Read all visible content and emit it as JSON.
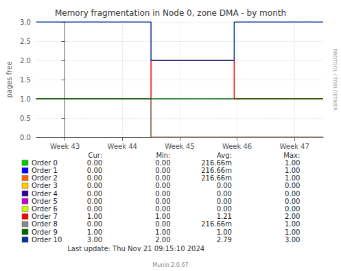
{
  "chart_data": {
    "type": "line",
    "title": "Memory fragmentation in Node 0, zone DMA - by month",
    "ylabel": "pages free",
    "xlim": [
      -0.5,
      4.5
    ],
    "xticks": [
      {
        "value": 0,
        "label": "Week 43"
      },
      {
        "value": 1,
        "label": "Week 44"
      },
      {
        "value": 2,
        "label": "Week 45"
      },
      {
        "value": 3,
        "label": "Week 46"
      },
      {
        "value": 4,
        "label": "Week 47"
      }
    ],
    "ylim": [
      0.0,
      3.0
    ],
    "yticks": [
      {
        "value": 0.0,
        "label": "0.0"
      },
      {
        "value": 0.5,
        "label": "0.5"
      },
      {
        "value": 1.0,
        "label": "1.0"
      },
      {
        "value": 1.5,
        "label": "1.5"
      },
      {
        "value": 2.0,
        "label": "2.0"
      },
      {
        "value": 2.5,
        "label": "2.5"
      },
      {
        "value": 3.0,
        "label": "3.0"
      }
    ],
    "grid": true,
    "series": [
      {
        "name": "Order 0",
        "color": "#00cc00",
        "x": [
          -0.5,
          1.5,
          1.5,
          4.5
        ],
        "values": [
          1.0,
          1.0,
          0.0,
          0.0
        ]
      },
      {
        "name": "Order 1",
        "color": "#0000ff",
        "x": [
          -0.5,
          1.5,
          1.5,
          4.5
        ],
        "values": [
          1.0,
          1.0,
          0.0,
          0.0
        ]
      },
      {
        "name": "Order 2",
        "color": "#ff6600",
        "x": [
          -0.5,
          1.5,
          1.5,
          4.5
        ],
        "values": [
          1.0,
          1.0,
          0.0,
          0.0
        ]
      },
      {
        "name": "Order 7",
        "color": "#ff0000",
        "x": [
          -0.5,
          1.5,
          1.5,
          2.95,
          2.95,
          4.5
        ],
        "values": [
          1.0,
          1.0,
          2.0,
          2.0,
          1.0,
          1.0
        ]
      },
      {
        "name": "Order 8",
        "color": "#888888",
        "x": [
          -0.5,
          1.5,
          1.5,
          4.5
        ],
        "values": [
          1.0,
          1.0,
          0.0,
          0.0
        ]
      },
      {
        "name": "Order 9",
        "color": "#006600",
        "x": [
          -0.5,
          4.5
        ],
        "values": [
          1.0,
          1.0
        ]
      },
      {
        "name": "Order 10",
        "color": "#003399",
        "x": [
          -0.5,
          1.5,
          1.5,
          2.95,
          2.95,
          4.5
        ],
        "values": [
          3.0,
          3.0,
          2.0,
          2.0,
          3.0,
          3.0
        ]
      }
    ],
    "table": {
      "headers": [
        "Cur:",
        "Min:",
        "Avg:",
        "Max:"
      ],
      "rows": [
        {
          "name": "Order 0",
          "color": "#00cc00",
          "cur": "0.00",
          "min": "0.00",
          "avg": "216.66m",
          "max": "1.00"
        },
        {
          "name": "Order 1",
          "color": "#0000ff",
          "cur": "0.00",
          "min": "0.00",
          "avg": "216.66m",
          "max": "1.00"
        },
        {
          "name": "Order 2",
          "color": "#ff6600",
          "cur": "0.00",
          "min": "0.00",
          "avg": "216.66m",
          "max": "1.00"
        },
        {
          "name": "Order 3",
          "color": "#ffcc00",
          "cur": "0.00",
          "min": "0.00",
          "avg": "0.00",
          "max": "0.00"
        },
        {
          "name": "Order 4",
          "color": "#330099",
          "cur": "0.00",
          "min": "0.00",
          "avg": "0.00",
          "max": "0.00"
        },
        {
          "name": "Order 5",
          "color": "#cc00cc",
          "cur": "0.00",
          "min": "0.00",
          "avg": "0.00",
          "max": "0.00"
        },
        {
          "name": "Order 6",
          "color": "#ccff00",
          "cur": "0.00",
          "min": "0.00",
          "avg": "0.00",
          "max": "0.00"
        },
        {
          "name": "Order 7",
          "color": "#ff0000",
          "cur": "1.00",
          "min": "1.00",
          "avg": "1.21",
          "max": "2.00"
        },
        {
          "name": "Order 8",
          "color": "#888888",
          "cur": "0.00",
          "min": "0.00",
          "avg": "216.66m",
          "max": "1.00"
        },
        {
          "name": "Order 9",
          "color": "#006600",
          "cur": "1.00",
          "min": "1.00",
          "avg": "1.00",
          "max": "1.00"
        },
        {
          "name": "Order 10",
          "color": "#003399",
          "cur": "3.00",
          "min": "2.00",
          "avg": "2.79",
          "max": "3.00"
        }
      ]
    },
    "annotations": [
      "Last update: Thu Nov 21 09:15:10 2024",
      "Munin 2.0.67",
      "RRDTOOL / TOBI OETIKER"
    ]
  }
}
